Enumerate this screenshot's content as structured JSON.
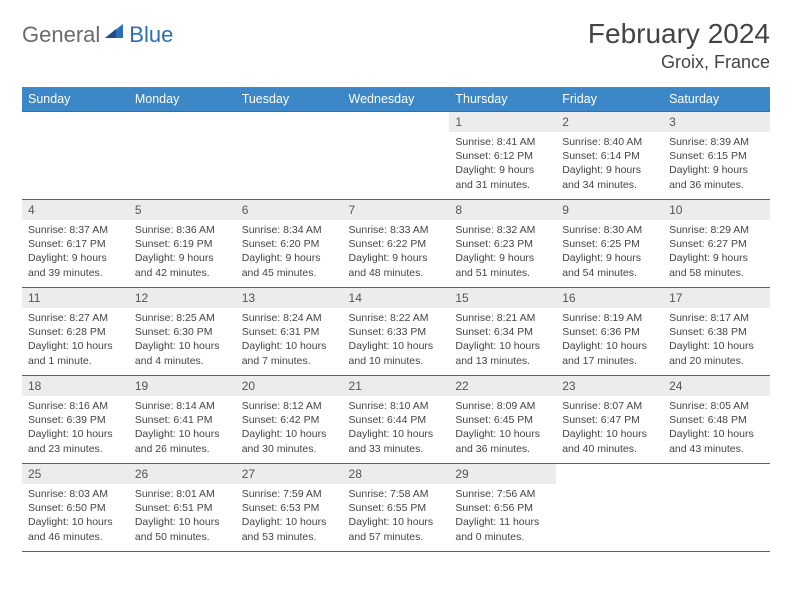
{
  "brand": {
    "part1": "General",
    "part2": "Blue"
  },
  "title": "February 2024",
  "location": "Groix, France",
  "colors": {
    "header_bg": "#3b87c8",
    "header_text": "#ffffff",
    "border": "#2a6db8",
    "daynum_bg": "#ececec",
    "logo_gray": "#6b6b6b",
    "logo_blue": "#2a6db8",
    "page_bg": "#ffffff"
  },
  "weekdays": [
    "Sunday",
    "Monday",
    "Tuesday",
    "Wednesday",
    "Thursday",
    "Friday",
    "Saturday"
  ],
  "weeks": [
    [
      {
        "empty": true
      },
      {
        "empty": true
      },
      {
        "empty": true
      },
      {
        "empty": true
      },
      {
        "day": "1",
        "sunrise": "Sunrise: 8:41 AM",
        "sunset": "Sunset: 6:12 PM",
        "daylight": "Daylight: 9 hours and 31 minutes."
      },
      {
        "day": "2",
        "sunrise": "Sunrise: 8:40 AM",
        "sunset": "Sunset: 6:14 PM",
        "daylight": "Daylight: 9 hours and 34 minutes."
      },
      {
        "day": "3",
        "sunrise": "Sunrise: 8:39 AM",
        "sunset": "Sunset: 6:15 PM",
        "daylight": "Daylight: 9 hours and 36 minutes."
      }
    ],
    [
      {
        "day": "4",
        "sunrise": "Sunrise: 8:37 AM",
        "sunset": "Sunset: 6:17 PM",
        "daylight": "Daylight: 9 hours and 39 minutes."
      },
      {
        "day": "5",
        "sunrise": "Sunrise: 8:36 AM",
        "sunset": "Sunset: 6:19 PM",
        "daylight": "Daylight: 9 hours and 42 minutes."
      },
      {
        "day": "6",
        "sunrise": "Sunrise: 8:34 AM",
        "sunset": "Sunset: 6:20 PM",
        "daylight": "Daylight: 9 hours and 45 minutes."
      },
      {
        "day": "7",
        "sunrise": "Sunrise: 8:33 AM",
        "sunset": "Sunset: 6:22 PM",
        "daylight": "Daylight: 9 hours and 48 minutes."
      },
      {
        "day": "8",
        "sunrise": "Sunrise: 8:32 AM",
        "sunset": "Sunset: 6:23 PM",
        "daylight": "Daylight: 9 hours and 51 minutes."
      },
      {
        "day": "9",
        "sunrise": "Sunrise: 8:30 AM",
        "sunset": "Sunset: 6:25 PM",
        "daylight": "Daylight: 9 hours and 54 minutes."
      },
      {
        "day": "10",
        "sunrise": "Sunrise: 8:29 AM",
        "sunset": "Sunset: 6:27 PM",
        "daylight": "Daylight: 9 hours and 58 minutes."
      }
    ],
    [
      {
        "day": "11",
        "sunrise": "Sunrise: 8:27 AM",
        "sunset": "Sunset: 6:28 PM",
        "daylight": "Daylight: 10 hours and 1 minute."
      },
      {
        "day": "12",
        "sunrise": "Sunrise: 8:25 AM",
        "sunset": "Sunset: 6:30 PM",
        "daylight": "Daylight: 10 hours and 4 minutes."
      },
      {
        "day": "13",
        "sunrise": "Sunrise: 8:24 AM",
        "sunset": "Sunset: 6:31 PM",
        "daylight": "Daylight: 10 hours and 7 minutes."
      },
      {
        "day": "14",
        "sunrise": "Sunrise: 8:22 AM",
        "sunset": "Sunset: 6:33 PM",
        "daylight": "Daylight: 10 hours and 10 minutes."
      },
      {
        "day": "15",
        "sunrise": "Sunrise: 8:21 AM",
        "sunset": "Sunset: 6:34 PM",
        "daylight": "Daylight: 10 hours and 13 minutes."
      },
      {
        "day": "16",
        "sunrise": "Sunrise: 8:19 AM",
        "sunset": "Sunset: 6:36 PM",
        "daylight": "Daylight: 10 hours and 17 minutes."
      },
      {
        "day": "17",
        "sunrise": "Sunrise: 8:17 AM",
        "sunset": "Sunset: 6:38 PM",
        "daylight": "Daylight: 10 hours and 20 minutes."
      }
    ],
    [
      {
        "day": "18",
        "sunrise": "Sunrise: 8:16 AM",
        "sunset": "Sunset: 6:39 PM",
        "daylight": "Daylight: 10 hours and 23 minutes."
      },
      {
        "day": "19",
        "sunrise": "Sunrise: 8:14 AM",
        "sunset": "Sunset: 6:41 PM",
        "daylight": "Daylight: 10 hours and 26 minutes."
      },
      {
        "day": "20",
        "sunrise": "Sunrise: 8:12 AM",
        "sunset": "Sunset: 6:42 PM",
        "daylight": "Daylight: 10 hours and 30 minutes."
      },
      {
        "day": "21",
        "sunrise": "Sunrise: 8:10 AM",
        "sunset": "Sunset: 6:44 PM",
        "daylight": "Daylight: 10 hours and 33 minutes."
      },
      {
        "day": "22",
        "sunrise": "Sunrise: 8:09 AM",
        "sunset": "Sunset: 6:45 PM",
        "daylight": "Daylight: 10 hours and 36 minutes."
      },
      {
        "day": "23",
        "sunrise": "Sunrise: 8:07 AM",
        "sunset": "Sunset: 6:47 PM",
        "daylight": "Daylight: 10 hours and 40 minutes."
      },
      {
        "day": "24",
        "sunrise": "Sunrise: 8:05 AM",
        "sunset": "Sunset: 6:48 PM",
        "daylight": "Daylight: 10 hours and 43 minutes."
      }
    ],
    [
      {
        "day": "25",
        "sunrise": "Sunrise: 8:03 AM",
        "sunset": "Sunset: 6:50 PM",
        "daylight": "Daylight: 10 hours and 46 minutes."
      },
      {
        "day": "26",
        "sunrise": "Sunrise: 8:01 AM",
        "sunset": "Sunset: 6:51 PM",
        "daylight": "Daylight: 10 hours and 50 minutes."
      },
      {
        "day": "27",
        "sunrise": "Sunrise: 7:59 AM",
        "sunset": "Sunset: 6:53 PM",
        "daylight": "Daylight: 10 hours and 53 minutes."
      },
      {
        "day": "28",
        "sunrise": "Sunrise: 7:58 AM",
        "sunset": "Sunset: 6:55 PM",
        "daylight": "Daylight: 10 hours and 57 minutes."
      },
      {
        "day": "29",
        "sunrise": "Sunrise: 7:56 AM",
        "sunset": "Sunset: 6:56 PM",
        "daylight": "Daylight: 11 hours and 0 minutes."
      },
      {
        "empty": true
      },
      {
        "empty": true
      }
    ]
  ]
}
